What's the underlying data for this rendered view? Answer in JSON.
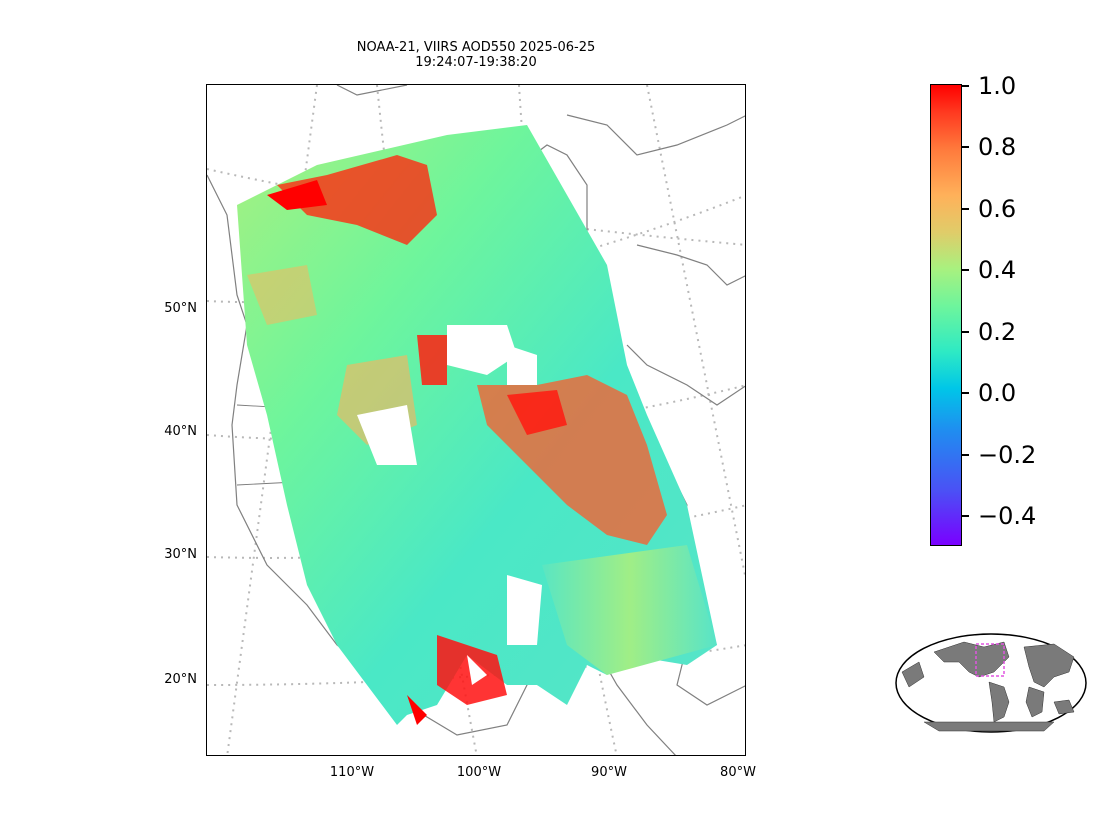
{
  "figure": {
    "title_line1": "NOAA-21, VIIRS AOD550 2025-06-25",
    "title_line2": "19:24:07-19:38:20"
  },
  "map": {
    "latitude_labels": [
      "50°N",
      "40°N",
      "30°N",
      "20°N"
    ],
    "longitude_labels": [
      "110°W",
      "100°W",
      "90°W",
      "80°W"
    ],
    "gridlines": "dotted",
    "colormap": "rainbow",
    "coastline_color": "#808080",
    "gridline_color": "#b0b0b0"
  },
  "colorbar": {
    "range": [
      -0.5,
      1.0
    ],
    "tick_labels": [
      "1.0",
      "0.8",
      "0.6",
      "0.4",
      "0.2",
      "0.0",
      "−0.2",
      "−0.4"
    ],
    "colors": {
      "min": "#7a00ff",
      "low": "#1f8ef0",
      "zero": "#00c6e8",
      "mid": "#6ef59c",
      "high": "#ffb15a",
      "max": "#ff0000"
    }
  },
  "inset": {
    "description_icon": "world-globe-icon",
    "highlight_color": "#e055e0",
    "land_color": "#7a7a7a"
  }
}
